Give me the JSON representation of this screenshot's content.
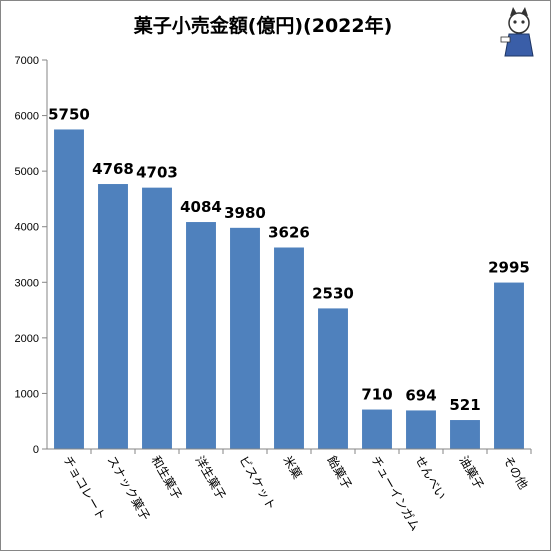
{
  "chart_data": {
    "type": "bar",
    "title": "菓子小売金額(億円)(2022年)",
    "categories": [
      "チョコレート",
      "スナック菓子",
      "和生菓子",
      "洋生菓子",
      "ビスケット",
      "米菓",
      "飴菓子",
      "チューインガム",
      "せんべい",
      "油菓子",
      "その他"
    ],
    "values": [
      5750,
      4768,
      4703,
      4084,
      3980,
      3626,
      2530,
      710,
      694,
      521,
      2995
    ],
    "ylim": [
      0,
      7000
    ],
    "yticks": [
      "0",
      "1000",
      "2000",
      "3000",
      "4000",
      "5000",
      "6000",
      "7000"
    ],
    "grid": false,
    "bar_color": "#4f81bd",
    "logo": "mascot-illustration"
  }
}
